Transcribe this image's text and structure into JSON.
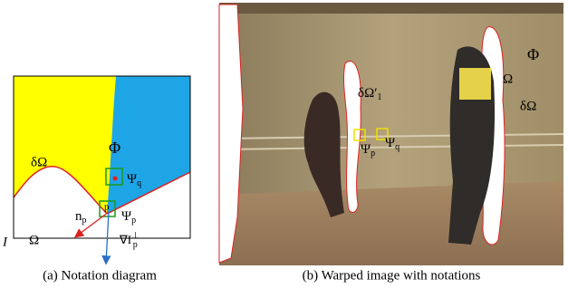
{
  "figures": [
    {
      "caption": "(a) Notation diagram",
      "labels": {
        "boundary": "δΩ",
        "source": "Φ",
        "psi_q": [
          "Ψ",
          "q"
        ],
        "normal": [
          "n",
          "p"
        ],
        "point": "p",
        "psi_p": [
          "Ψ",
          "p"
        ],
        "image": "I",
        "target": "Ω",
        "isophote": [
          "∇I",
          "⊥",
          "p"
        ]
      }
    },
    {
      "caption": "(b) Warped image with notations",
      "labels": {
        "boundary_prime": [
          "δΩ′",
          "1"
        ],
        "target": "Ω",
        "source": "Φ",
        "boundary": "δΩ",
        "psi_p": [
          "Ψ",
          "p"
        ],
        "psi_q": [
          "Ψ",
          "q"
        ]
      }
    }
  ]
}
